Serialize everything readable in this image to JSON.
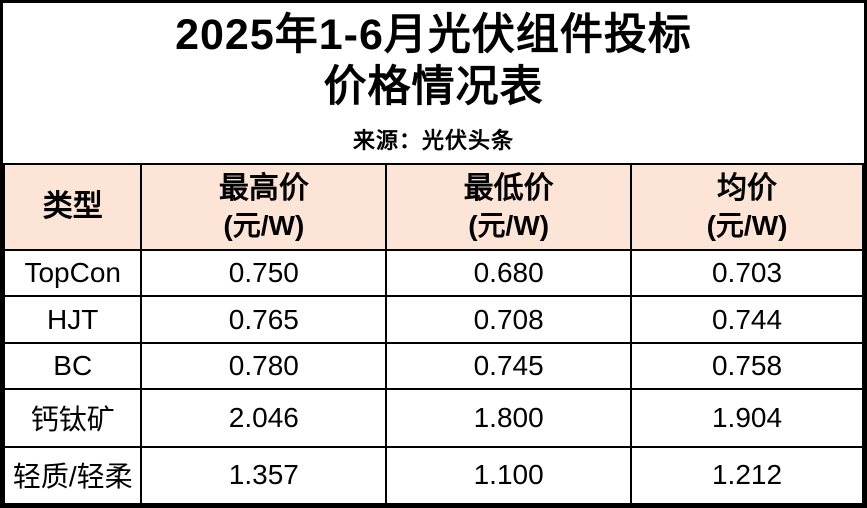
{
  "header": {
    "title_line1": "2025年1-6月光伏组件投标",
    "title_line2": "价格情况表",
    "source": "来源：光伏头条"
  },
  "table": {
    "header": {
      "type_label": "类型",
      "columns": [
        {
          "label": "最高价",
          "unit": "(元/W)"
        },
        {
          "label": "最低价",
          "unit": "(元/W)"
        },
        {
          "label": "均价",
          "unit": "(元/W)"
        }
      ]
    },
    "rows": [
      {
        "type": "TopCon",
        "max": "0.750",
        "min": "0.680",
        "avg": "0.703"
      },
      {
        "type": "HJT",
        "max": "0.765",
        "min": "0.708",
        "avg": "0.744"
      },
      {
        "type": "BC",
        "max": "0.780",
        "min": "0.745",
        "avg": "0.758"
      },
      {
        "type": "钙钛矿",
        "max": "2.046",
        "min": "1.800",
        "avg": "1.904"
      },
      {
        "type": "轻质/轻柔",
        "max": "1.357",
        "min": "1.100",
        "avg": "1.212"
      }
    ]
  },
  "colors": {
    "header_bg": "#FCE4D6",
    "border": "#000000",
    "background": "#FFFFFF",
    "text": "#000000"
  },
  "chart_data": {
    "type": "table",
    "title": "2025年1-6月光伏组件投标价格情况表",
    "source": "来源：光伏头条",
    "columns": [
      "类型",
      "最高价 (元/W)",
      "最低价 (元/W)",
      "均价 (元/W)"
    ],
    "rows": [
      [
        "TopCon",
        0.75,
        0.68,
        0.703
      ],
      [
        "HJT",
        0.765,
        0.708,
        0.744
      ],
      [
        "BC",
        0.78,
        0.745,
        0.758
      ],
      [
        "钙钛矿",
        2.046,
        1.8,
        1.904
      ],
      [
        "轻质/轻柔",
        1.357,
        1.1,
        1.212
      ]
    ]
  }
}
